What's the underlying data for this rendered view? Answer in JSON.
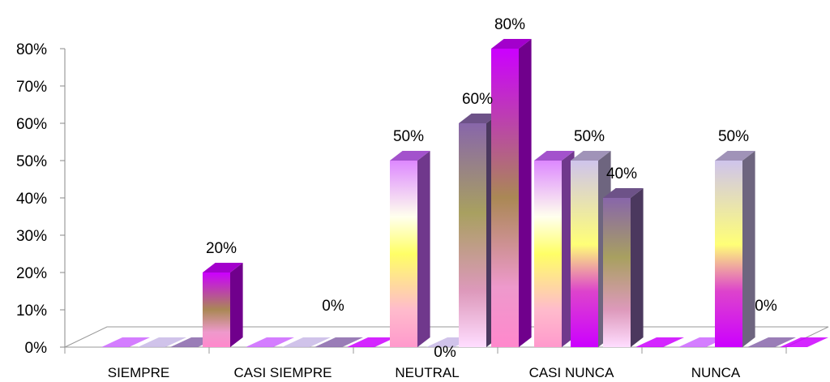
{
  "chart_data": {
    "type": "bar",
    "style": "3d-clustered-column",
    "title": "",
    "xlabel": "",
    "ylabel": "",
    "ylim": [
      0,
      80
    ],
    "yticks": [
      "0%",
      "10%",
      "20%",
      "30%",
      "40%",
      "50%",
      "60%",
      "70%",
      "80%"
    ],
    "categories": [
      "SIEMPRE",
      "CASI SIEMPRE",
      "NEUTRAL",
      "CASI NUNCA",
      "NUNCA"
    ],
    "series": [
      {
        "values": [
          0,
          0,
          50,
          50,
          0
        ],
        "color": "#cc66ff"
      },
      {
        "values": [
          0,
          0,
          0,
          50,
          50
        ],
        "color": "#c8b8e6"
      },
      {
        "values": [
          0,
          0,
          60,
          40,
          0
        ],
        "color": "#8866aa"
      },
      {
        "values": [
          20,
          0,
          80,
          0,
          0
        ],
        "color": "#cc00ff"
      }
    ],
    "data_labels": [
      {
        "text": "20%",
        "category": 0,
        "series": 3
      },
      {
        "text": "0%",
        "category": 1,
        "series": 2
      },
      {
        "text": "50%",
        "category": 2,
        "series": 0
      },
      {
        "text": "0%",
        "category": 2,
        "series": 1
      },
      {
        "text": "60%",
        "category": 2,
        "series": 2
      },
      {
        "text": "80%",
        "category": 2,
        "series": 3
      },
      {
        "text": "50%",
        "category": 3,
        "series": 1
      },
      {
        "text": "40%",
        "category": 3,
        "series": 2
      },
      {
        "text": "50%",
        "category": 4,
        "series": 1
      },
      {
        "text": "0%",
        "category": 4,
        "series": 2
      }
    ],
    "legend": "none",
    "grid": false
  }
}
